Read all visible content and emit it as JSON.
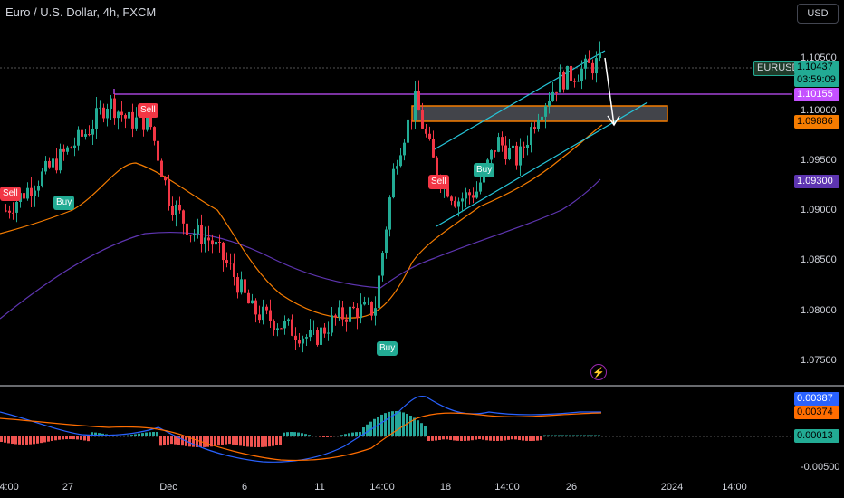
{
  "header": {
    "title": "Euro / U.S. Dollar, 4h, FXCM",
    "currency_button": "USD"
  },
  "price_axis": {
    "ticks": [
      "1.10500",
      "1.10000",
      "1.09500",
      "1.09000",
      "1.08500",
      "1.08000",
      "1.07500"
    ],
    "symbol_badge": "EURUSD",
    "last_price": "1.10437",
    "countdown": "03:59:09",
    "resistance_label": "1.10155",
    "orange_label": "1.09886",
    "purple_label": "1.09300"
  },
  "macd_axis": {
    "macd_value": "0.00387",
    "signal_value": "0.00374",
    "hist_value": "0.00013",
    "tick": "-0.00500"
  },
  "time_axis": [
    "14:00",
    "27",
    "Dec",
    "6",
    "11",
    "14:00",
    "18",
    "14:00",
    "26",
    "2024",
    "14:00"
  ],
  "signals": [
    "Sell",
    "Buy",
    "Sell",
    "Buy",
    "Sell",
    "Buy"
  ],
  "colors": {
    "bull": "#22ab94",
    "bear": "#f23645",
    "resistance": "#c451ff",
    "ema_fast": "#f57c00",
    "ema_slow": "#5e35b1",
    "channel": "#26c6da",
    "macd": "#2962ff",
    "signal": "#ff6d00",
    "hist_pos": "#26a69a",
    "hist_neg": "#ef5350"
  },
  "chart_data": {
    "type": "candlestick",
    "title": "Euro / U.S. Dollar, 4h, FXCM",
    "ylim": [
      1.072,
      1.107
    ],
    "close_path": [
      1.0895,
      1.0915,
      1.0935,
      1.0955,
      1.0975,
      1.1005,
      1.0985,
      1.0985,
      1.0905,
      1.0875,
      1.0865,
      1.0835,
      1.0795,
      1.0785,
      1.0775,
      1.0765,
      1.0785,
      1.0795,
      1.0795,
      1.0945,
      1.1005,
      1.0935,
      1.0905,
      1.0915,
      1.0965,
      1.0945,
      1.0995,
      1.1025,
      1.1035,
      1.1044
    ]
  }
}
